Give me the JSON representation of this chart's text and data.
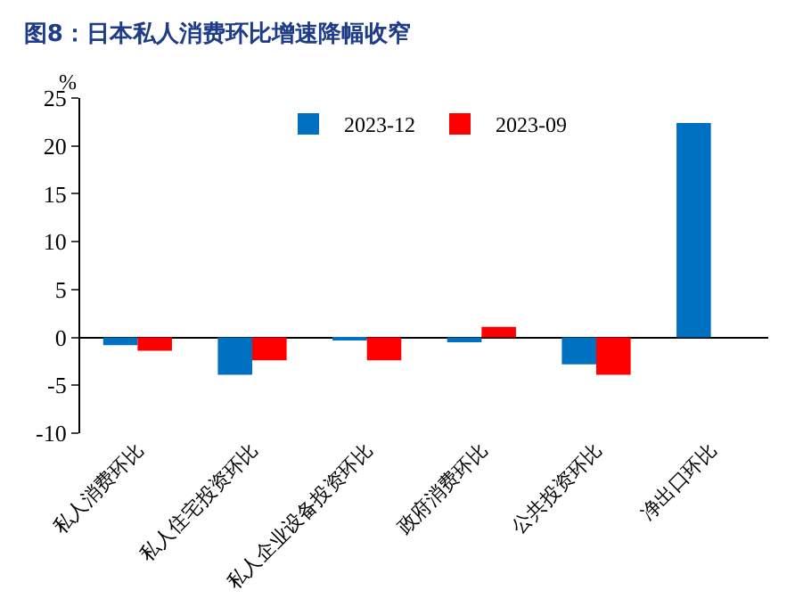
{
  "chart_data": {
    "type": "bar",
    "title": "图8：日本私人消费环比增速降幅收窄",
    "ylabel": "%",
    "categories": [
      "私人消费环比",
      "私人住宅投资环比",
      "私人企业设备投资环比",
      "政府消费环比",
      "公共投资环比",
      "净出口环比"
    ],
    "series": [
      {
        "name": "2023-12",
        "color": "#0070c0",
        "values": [
          -0.8,
          -3.9,
          -0.3,
          -0.5,
          -2.8,
          22.4
        ]
      },
      {
        "name": "2023-09",
        "color": "#ff0000",
        "values": [
          -1.4,
          -2.4,
          -2.4,
          1.1,
          -3.9,
          null
        ]
      }
    ],
    "ylim": [
      -10,
      25
    ],
    "yticks": [
      -10,
      -5,
      0,
      5,
      10,
      15,
      20,
      25
    ],
    "legend": "top"
  }
}
